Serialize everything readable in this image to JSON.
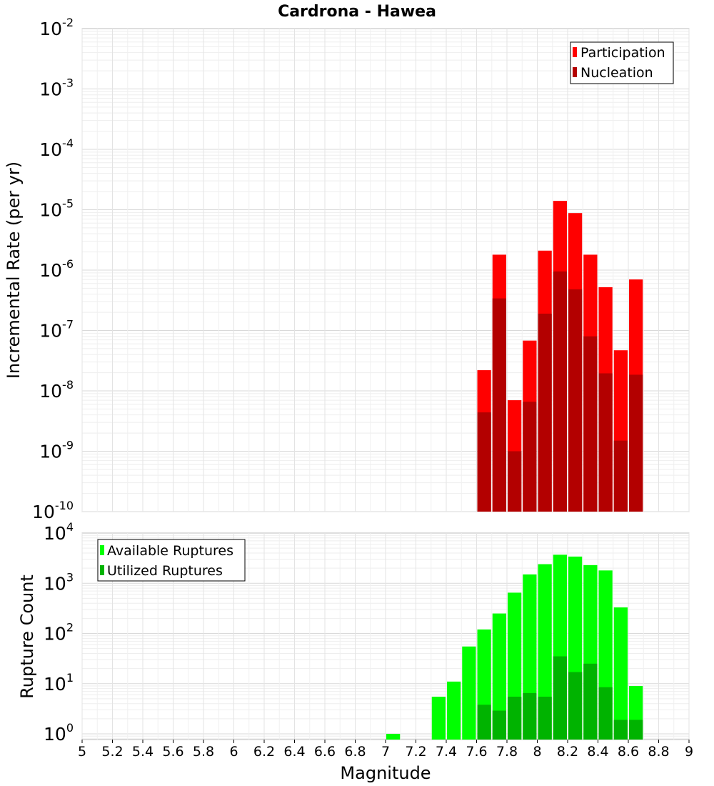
{
  "chart_data": [
    {
      "type": "bar",
      "title": "Cardrona - Hawea",
      "xlabel": "",
      "ylabel": "Incremental Rate (per yr)",
      "yscale": "log",
      "ylim": [
        1e-10,
        0.01
      ],
      "xlim": [
        5,
        9
      ],
      "legend_position": "top-right",
      "grid": true,
      "x": [
        7.65,
        7.75,
        7.85,
        7.95,
        8.05,
        8.15,
        8.25,
        8.35,
        8.45,
        8.55,
        8.65
      ],
      "series": [
        {
          "name": "Participation",
          "color": "#ff0000",
          "values": [
            2.2e-08,
            1.8e-06,
            7e-09,
            6.8e-08,
            2.1e-06,
            1.4e-05,
            8.8e-06,
            1.8e-06,
            5.2e-07,
            4.7e-08,
            7e-07
          ]
        },
        {
          "name": "Nucleation",
          "color": "#b30000",
          "values": [
            4.4e-09,
            3.4e-07,
            1e-09,
            6.6e-09,
            1.9e-07,
            9.5e-07,
            4.8e-07,
            8e-08,
            1.95e-08,
            1.5e-09,
            1.85e-08
          ]
        }
      ]
    },
    {
      "type": "bar",
      "title": "",
      "xlabel": "Magnitude",
      "ylabel": "Rupture Count",
      "yscale": "log",
      "ylim": [
        0.77,
        10000
      ],
      "xlim": [
        5,
        9
      ],
      "legend_position": "top-left",
      "grid": true,
      "x": [
        7.05,
        7.35,
        7.45,
        7.55,
        7.65,
        7.75,
        7.85,
        7.95,
        8.05,
        8.15,
        8.25,
        8.35,
        8.45,
        8.55,
        8.65
      ],
      "xticks": [
        "5",
        "5.2",
        "5.4",
        "5.6",
        "5.8",
        "6",
        "6.2",
        "6.4",
        "6.6",
        "6.8",
        "7",
        "7.2",
        "7.4",
        "7.6",
        "7.8",
        "8",
        "8.2",
        "8.4",
        "8.6",
        "8.8",
        "9"
      ],
      "series": [
        {
          "name": "Available Ruptures",
          "color": "#00ff00",
          "values": [
            1,
            5.5,
            11,
            55,
            120,
            250,
            650,
            1500,
            2400,
            3700,
            3400,
            2300,
            1800,
            330,
            9
          ]
        },
        {
          "name": "Utilized Ruptures",
          "color": "#00b300",
          "values": [
            0,
            0,
            0,
            0,
            3.8,
            2.9,
            5.5,
            6.5,
            5.5,
            35,
            17,
            25,
            8.5,
            1.9,
            1.9
          ]
        }
      ]
    }
  ]
}
